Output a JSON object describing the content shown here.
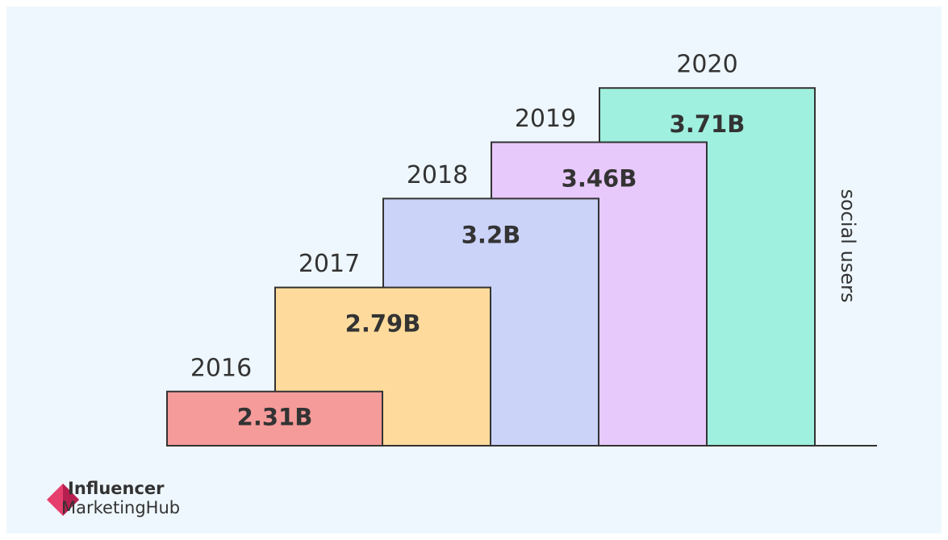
{
  "chart_data": {
    "type": "bar",
    "categories": [
      "2016",
      "2017",
      "2018",
      "2019",
      "2020"
    ],
    "values": [
      2.31,
      2.79,
      3.2,
      3.46,
      3.71
    ],
    "value_labels": [
      "2.31B",
      "2.79B",
      "3.2B",
      "3.46B",
      "3.71B"
    ],
    "colors": [
      "#f59b9a",
      "#fedb9c",
      "#cbd3f9",
      "#e8c9fb",
      "#9ff0de"
    ],
    "y_label": "social users",
    "ylim": [
      2.06,
      3.8
    ]
  },
  "logo": {
    "line1": "Influencer",
    "line2": "MarketingHub"
  }
}
